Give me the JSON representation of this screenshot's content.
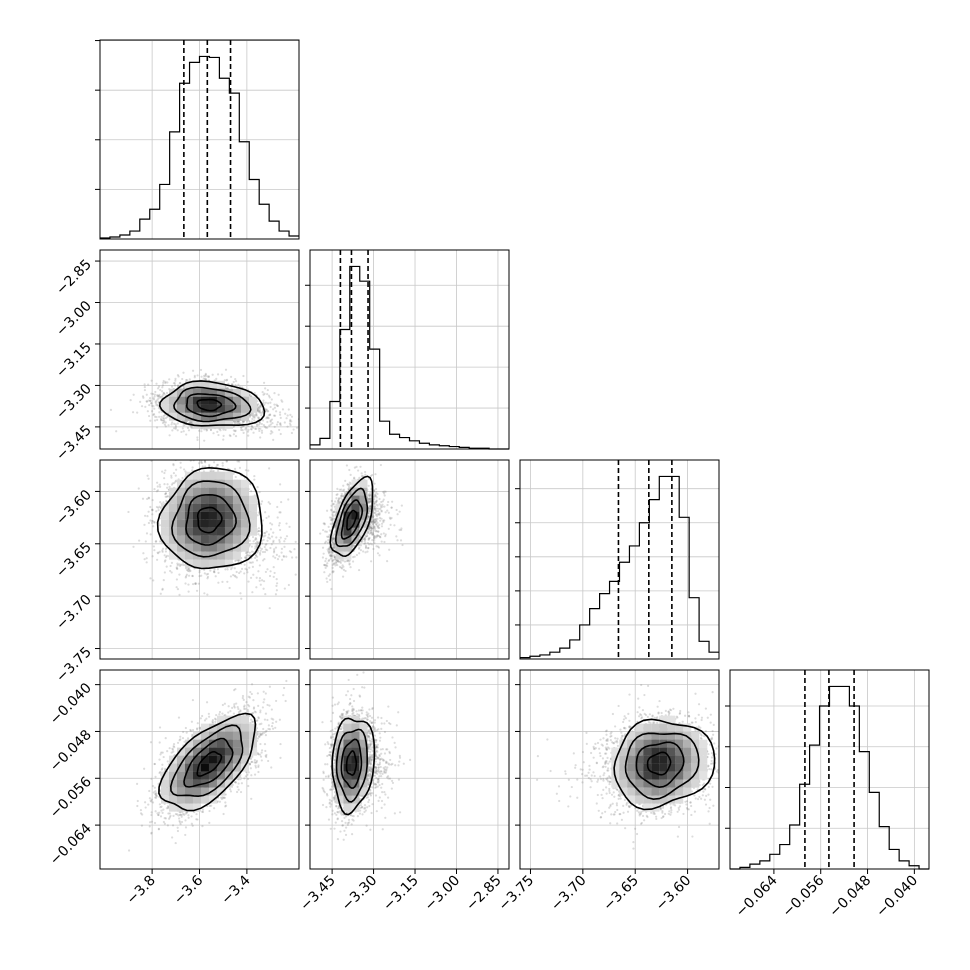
{
  "chart_data": {
    "type": "corner",
    "grid": true,
    "parameters": [
      {
        "id": "p0",
        "range": [
          -4.02,
          -3.18
        ],
        "ticks": [
          -3.8,
          -3.6,
          -3.4
        ],
        "tick_labels": [
          "−3.8",
          "−3.6",
          "−3.4"
        ],
        "histogram": {
          "edges": [
            -4.02,
            -3.978,
            -3.936,
            -3.894,
            -3.852,
            -3.81,
            -3.768,
            -3.726,
            -3.684,
            -3.642,
            -3.6,
            -3.558,
            -3.516,
            -3.474,
            -3.432,
            -3.39,
            -3.348,
            -3.306,
            -3.264,
            -3.222,
            -3.18
          ],
          "counts": [
            1,
            2,
            4,
            8,
            20,
            30,
            55,
            108,
            157,
            178,
            184,
            183,
            162,
            147,
            98,
            60,
            35,
            18,
            8,
            3
          ]
        },
        "quantiles": [
          -3.666,
          -3.567,
          -3.469
        ]
      },
      {
        "id": "p1",
        "range": [
          -3.53,
          -2.81
        ],
        "ticks": [
          -3.45,
          -3.3,
          -3.15,
          -3.0,
          -2.85
        ],
        "tick_labels": [
          "−3.45",
          "−3.30",
          "−3.15",
          "−3.00",
          "−2.85"
        ],
        "histogram": {
          "edges": [
            -3.53,
            -3.494,
            -3.458,
            -3.422,
            -3.386,
            -3.35,
            -3.314,
            -3.278,
            -3.242,
            -3.206,
            -3.17,
            -3.134,
            -3.098,
            -3.062,
            -3.026,
            -2.99,
            -2.954,
            -2.918,
            -2.882,
            -2.846,
            -2.81
          ],
          "counts": [
            5,
            13,
            58,
            146,
            223,
            205,
            122,
            34,
            18,
            14,
            10,
            7,
            5,
            4,
            3,
            2,
            1,
            1,
            0,
            0
          ]
        },
        "quantiles": [
          -3.42,
          -3.38,
          -3.32
        ]
      },
      {
        "id": "p2",
        "range": [
          -3.76,
          -3.57
        ],
        "ticks": [
          -3.75,
          -3.7,
          -3.65,
          -3.6
        ],
        "tick_labels": [
          "−3.75",
          "−3.70",
          "−3.65",
          "−3.60"
        ],
        "histogram": {
          "edges": [
            -3.76,
            -3.7505,
            -3.741,
            -3.7315,
            -3.722,
            -3.7125,
            -3.703,
            -3.6935,
            -3.684,
            -3.6745,
            -3.665,
            -3.6555,
            -3.646,
            -3.6365,
            -3.627,
            -3.6175,
            -3.608,
            -3.5985,
            -3.589,
            -3.5795,
            -3.57
          ],
          "counts": [
            1,
            2,
            3,
            5,
            8,
            14,
            25,
            37,
            48,
            57,
            71,
            83,
            100,
            117,
            134,
            134,
            104,
            45,
            13,
            5
          ]
        },
        "quantiles": [
          -3.666,
          -3.637,
          -3.615
        ]
      },
      {
        "id": "p3",
        "range": [
          -0.0715,
          -0.0375
        ],
        "ticks": [
          -0.064,
          -0.056,
          -0.048,
          -0.04
        ],
        "tick_labels": [
          "−0.064",
          "−0.056",
          "−0.048",
          "−0.040"
        ],
        "histogram": {
          "edges": [
            -0.0715,
            -0.0698,
            -0.0681,
            -0.0664,
            -0.0647,
            -0.063,
            -0.0613,
            -0.0596,
            -0.0579,
            -0.0562,
            -0.0545,
            -0.0528,
            -0.0511,
            -0.0494,
            -0.0477,
            -0.046,
            -0.0443,
            -0.0426,
            -0.0409,
            -0.0392,
            -0.0375
          ],
          "counts": [
            0,
            1,
            3,
            5,
            9,
            15,
            27,
            52,
            76,
            100,
            112,
            112,
            100,
            72,
            47,
            26,
            12,
            5,
            2,
            0
          ]
        },
        "quantiles": [
          -0.0587,
          -0.0546,
          -0.0503
        ]
      }
    ],
    "pairs": [
      {
        "x": "p0",
        "y": "p1",
        "center": [
          -3.56,
          -3.37
        ],
        "spread": [
          0.1,
          0.04
        ],
        "corr": -0.1,
        "tail": [
          0.3,
          -0.4
        ]
      },
      {
        "x": "p0",
        "y": "p2",
        "center": [
          -3.56,
          -3.627
        ],
        "spread": [
          0.1,
          0.024
        ],
        "corr": 0.05,
        "tail": [
          0.3,
          -0.6
        ]
      },
      {
        "x": "p1",
        "y": "p2",
        "center": [
          -3.38,
          -3.627
        ],
        "spread": [
          0.035,
          0.018
        ],
        "corr": 0.55,
        "tail": [
          0.6,
          -0.6
        ]
      },
      {
        "x": "p0",
        "y": "p3",
        "center": [
          -3.56,
          -0.0535
        ],
        "spread": [
          0.1,
          0.004
        ],
        "corr": 0.6,
        "tail": [
          0,
          0
        ]
      },
      {
        "x": "p1",
        "y": "p3",
        "center": [
          -3.38,
          -0.0535
        ],
        "spread": [
          0.035,
          0.004
        ],
        "corr": 0.1,
        "tail": [
          0.6,
          -0.1
        ]
      },
      {
        "x": "p2",
        "y": "p3",
        "center": [
          -3.627,
          -0.0535
        ],
        "spread": [
          0.022,
          0.0037
        ],
        "corr": 0.1,
        "tail": [
          -0.3,
          0
        ]
      }
    ]
  }
}
